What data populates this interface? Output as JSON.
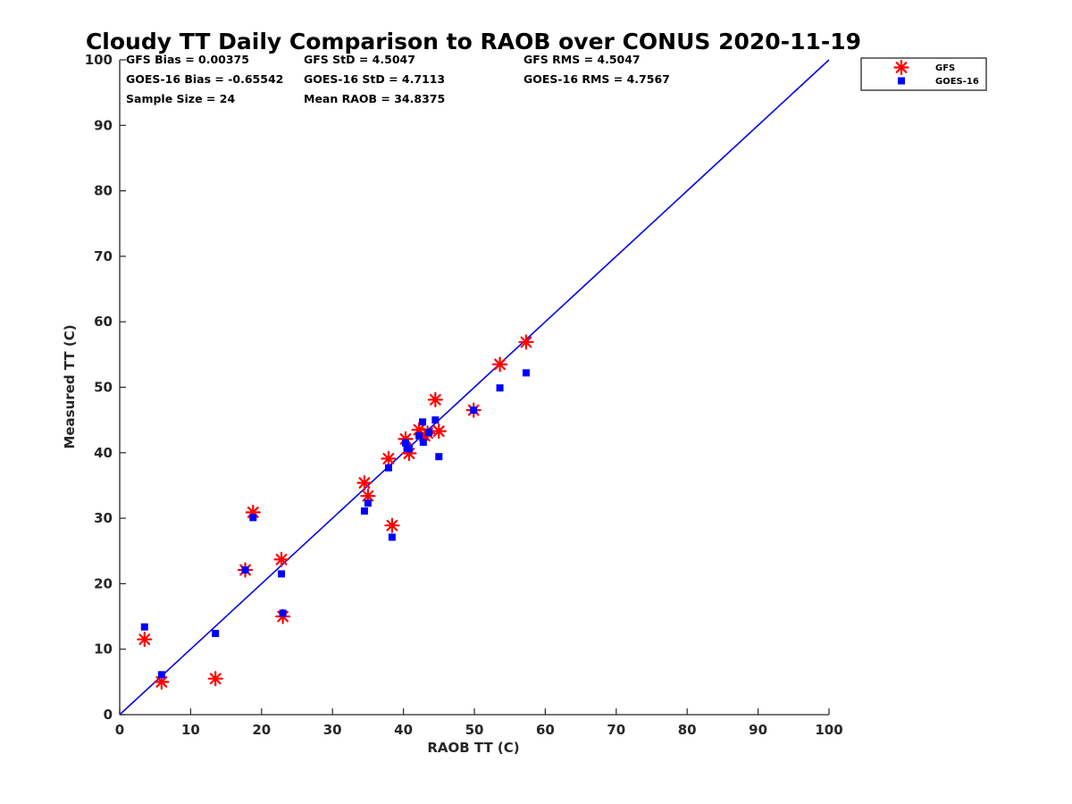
{
  "chart_data": {
    "type": "scatter",
    "title": "Cloudy TT Daily Comparison to RAOB over CONUS 2020-11-19",
    "xlabel": "RAOB TT (C)",
    "ylabel": "Measured TT (C)",
    "xlim": [
      0,
      100
    ],
    "ylim": [
      0,
      100
    ],
    "xticks": [
      "0",
      "10",
      "20",
      "30",
      "40",
      "50",
      "60",
      "70",
      "80",
      "90",
      "100"
    ],
    "yticks": [
      "0",
      "10",
      "20",
      "30",
      "40",
      "50",
      "60",
      "70",
      "80",
      "90",
      "100"
    ],
    "grid": false,
    "legend_position": "top-right (outside plot)",
    "reference_line": {
      "type": "one-to-one",
      "from": [
        0,
        0
      ],
      "to": [
        100,
        100
      ],
      "color": "#0000ee"
    },
    "stats": [
      [
        "GFS Bias = 0.00375",
        "GFS StD = 4.5047",
        "GFS RMS = 4.5047"
      ],
      [
        "GOES-16 Bias = -0.65542",
        "GOES-16 StD = 4.7113",
        "GOES-16 RMS = 4.7567"
      ],
      [
        "Sample Size = 24",
        "Mean RAOB = 34.8375",
        ""
      ]
    ],
    "series": [
      {
        "name": "GFS",
        "marker": "asterisk",
        "color": "#ff0000",
        "points": [
          [
            3.5,
            11.5
          ],
          [
            5.9,
            5.0
          ],
          [
            13.5,
            5.5
          ],
          [
            17.7,
            22.1
          ],
          [
            18.8,
            30.9
          ],
          [
            22.8,
            23.7
          ],
          [
            23.0,
            15.0
          ],
          [
            34.5,
            35.4
          ],
          [
            35.0,
            33.4
          ],
          [
            37.9,
            39.1
          ],
          [
            38.4,
            28.9
          ],
          [
            40.3,
            42.1
          ],
          [
            40.8,
            39.9
          ],
          [
            42.2,
            43.5
          ],
          [
            43.0,
            42.6
          ],
          [
            43.4,
            43.0
          ],
          [
            44.5,
            48.1
          ],
          [
            45.0,
            43.3
          ],
          [
            49.9,
            46.5
          ],
          [
            53.6,
            53.5
          ],
          [
            57.3,
            56.9
          ]
        ]
      },
      {
        "name": "GOES-16",
        "marker": "square",
        "color": "#0000ff",
        "points": [
          [
            3.5,
            13.4
          ],
          [
            5.9,
            6.1
          ],
          [
            13.5,
            12.4
          ],
          [
            17.7,
            22.1
          ],
          [
            18.8,
            30.1
          ],
          [
            22.8,
            21.5
          ],
          [
            23.0,
            15.5
          ],
          [
            34.5,
            31.1
          ],
          [
            35.0,
            32.3
          ],
          [
            37.9,
            37.7
          ],
          [
            38.4,
            27.1
          ],
          [
            40.3,
            41.5
          ],
          [
            40.5,
            40.8
          ],
          [
            40.8,
            40.6
          ],
          [
            42.2,
            42.6
          ],
          [
            42.7,
            44.7
          ],
          [
            42.8,
            41.6
          ],
          [
            43.6,
            43.1
          ],
          [
            44.5,
            45.0
          ],
          [
            45.0,
            39.4
          ],
          [
            49.9,
            46.5
          ],
          [
            53.6,
            49.9
          ],
          [
            57.3,
            52.2
          ]
        ]
      }
    ]
  }
}
